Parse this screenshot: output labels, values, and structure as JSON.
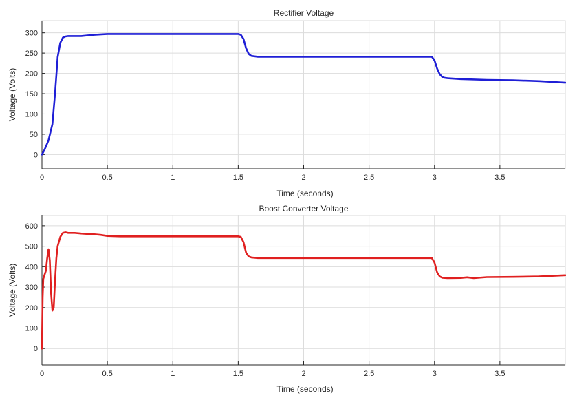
{
  "chart_data": [
    {
      "type": "line",
      "title": "Rectifier Voltage",
      "xlabel": "Time (seconds)",
      "ylabel": "Voltage (Volts)",
      "xlim": [
        0,
        4
      ],
      "ylim": [
        -35,
        330
      ],
      "xticks": [
        0,
        0.5,
        1,
        1.5,
        2,
        2.5,
        3,
        3.5
      ],
      "xtick_labels": [
        "0",
        "0.5",
        "1",
        "1.5",
        "2",
        "2.5",
        "3",
        "3.5"
      ],
      "yticks": [
        0,
        50,
        100,
        150,
        200,
        250,
        300
      ],
      "ytick_labels": [
        "0",
        "50",
        "100",
        "150",
        "200",
        "250",
        "300"
      ],
      "grid": true,
      "color": "#1f1fd6",
      "series": [
        {
          "x": [
            0,
            0.02,
            0.05,
            0.08,
            0.1,
            0.12,
            0.14,
            0.16,
            0.18,
            0.2,
            0.25,
            0.3,
            0.4,
            0.5,
            0.6,
            0.8,
            1.0,
            1.2,
            1.4,
            1.5,
            1.52,
            1.54,
            1.56,
            1.58,
            1.6,
            1.65,
            1.7,
            2.0,
            2.5,
            2.9,
            2.98,
            3.0,
            3.02,
            3.04,
            3.06,
            3.08,
            3.1,
            3.2,
            3.4,
            3.6,
            3.8,
            4.0
          ],
          "y": [
            0,
            12,
            35,
            75,
            150,
            240,
            275,
            288,
            291,
            292,
            292,
            292,
            295,
            297,
            297,
            297,
            297,
            297,
            297,
            297,
            295,
            285,
            262,
            248,
            243,
            241,
            241,
            241,
            241,
            241,
            241,
            232,
            212,
            198,
            191,
            189,
            188,
            186,
            184,
            183,
            181,
            177
          ]
        }
      ]
    },
    {
      "type": "line",
      "title": "Boost Converter Voltage",
      "xlabel": "Time (seconds)",
      "ylabel": "Voltage (Volts)",
      "xlim": [
        0,
        4
      ],
      "ylim": [
        -80,
        650
      ],
      "xticks": [
        0,
        0.5,
        1,
        1.5,
        2,
        2.5,
        3,
        3.5
      ],
      "xtick_labels": [
        "0",
        "0.5",
        "1",
        "1.5",
        "2",
        "2.5",
        "3",
        "3.5"
      ],
      "yticks": [
        0,
        100,
        200,
        300,
        400,
        500,
        600
      ],
      "ytick_labels": [
        "0",
        "100",
        "200",
        "300",
        "400",
        "500",
        "600"
      ],
      "grid": true,
      "color": "#e02020",
      "series": [
        {
          "x": [
            0,
            0.005,
            0.01,
            0.02,
            0.03,
            0.04,
            0.05,
            0.06,
            0.07,
            0.08,
            0.09,
            0.1,
            0.11,
            0.12,
            0.14,
            0.16,
            0.18,
            0.2,
            0.25,
            0.3,
            0.35,
            0.4,
            0.45,
            0.5,
            0.6,
            0.8,
            1.0,
            1.2,
            1.4,
            1.5,
            1.52,
            1.54,
            1.56,
            1.58,
            1.6,
            1.65,
            1.7,
            2.0,
            2.5,
            2.9,
            2.98,
            3.0,
            3.02,
            3.04,
            3.06,
            3.08,
            3.1,
            3.2,
            3.25,
            3.3,
            3.4,
            3.6,
            3.8,
            4.0
          ],
          "y": [
            0,
            250,
            340,
            360,
            380,
            440,
            485,
            430,
            270,
            185,
            200,
            330,
            440,
            500,
            545,
            565,
            568,
            565,
            565,
            562,
            560,
            558,
            555,
            550,
            548,
            548,
            548,
            548,
            548,
            548,
            545,
            520,
            468,
            450,
            445,
            442,
            442,
            442,
            442,
            442,
            442,
            420,
            372,
            352,
            346,
            345,
            344,
            345,
            348,
            344,
            349,
            350,
            352,
            358
          ]
        }
      ]
    }
  ]
}
